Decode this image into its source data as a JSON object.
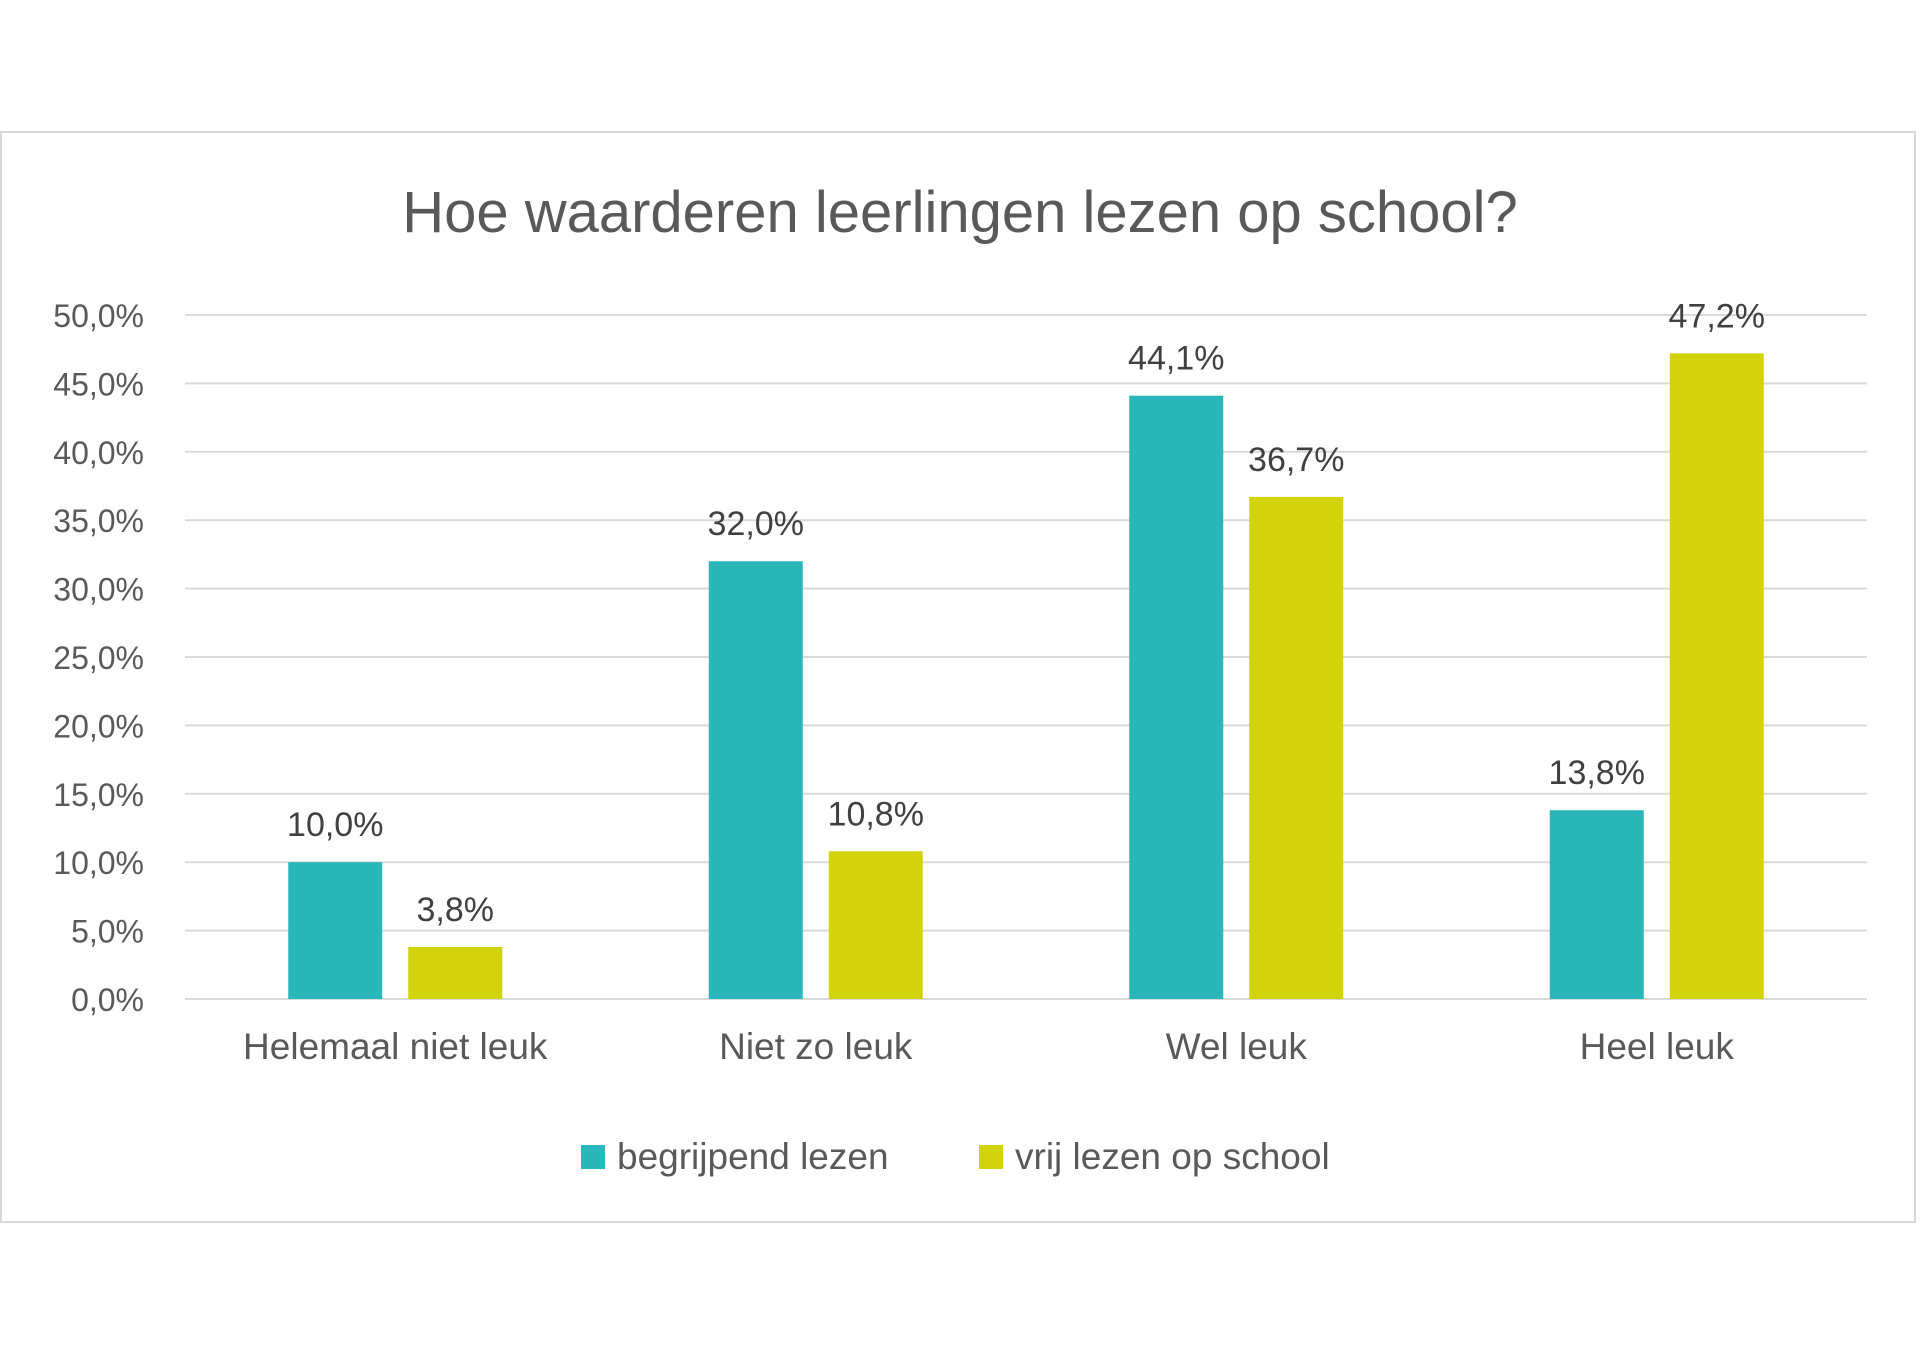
{
  "chart_data": {
    "type": "bar",
    "title": "Hoe waarderen leerlingen lezen op school?",
    "categories": [
      "Helemaal niet leuk",
      "Niet zo leuk",
      "Wel leuk",
      "Heel leuk"
    ],
    "series": [
      {
        "name": "begrijpend lezen",
        "color": "#29b7b9",
        "values": [
          10.0,
          32.0,
          44.1,
          13.8
        ],
        "labels": [
          "10,0%",
          "32,0%",
          "44,1%",
          "13,8%"
        ]
      },
      {
        "name": "vrij lezen op school",
        "color": "#d2d30c",
        "values": [
          3.8,
          10.8,
          36.7,
          47.2
        ],
        "labels": [
          "3,8%",
          "10,8%",
          "36,7%",
          "47,2%"
        ]
      }
    ],
    "ylim": [
      0,
      50
    ],
    "yticks": [
      0,
      5,
      10,
      15,
      20,
      25,
      30,
      35,
      40,
      45,
      50
    ],
    "ytick_labels": [
      "0,0%",
      "5,0%",
      "10,0%",
      "15,0%",
      "20,0%",
      "25,0%",
      "30,0%",
      "35,0%",
      "40,0%",
      "45,0%",
      "50,0%"
    ],
    "grid": true,
    "legend_position": "bottom",
    "xlabel": "",
    "ylabel": ""
  }
}
